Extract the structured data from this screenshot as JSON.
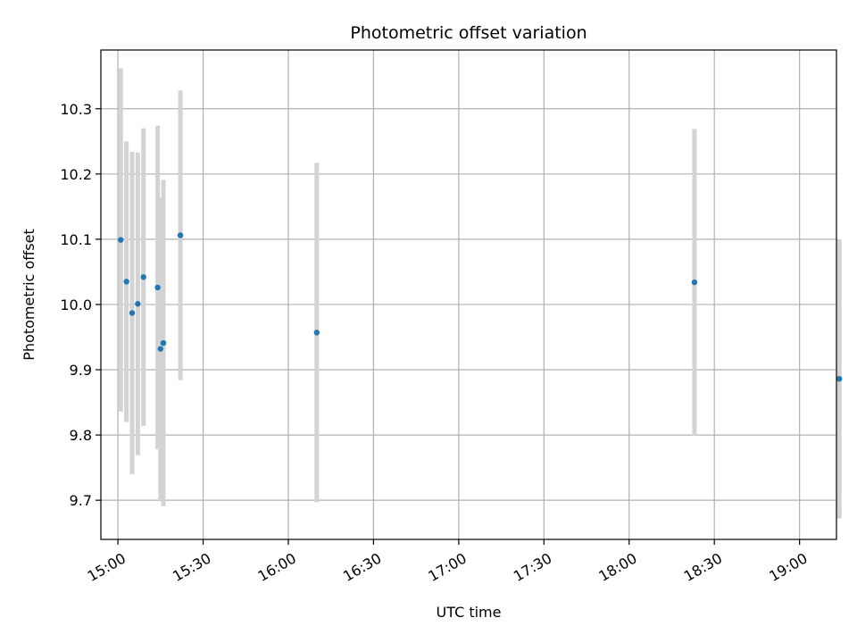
{
  "chart_data": {
    "type": "scatter",
    "title": "Photometric offset variation",
    "xlabel": "UTC time",
    "ylabel": "Photometric offset",
    "x_unit": "time (HH:MM, UTC)",
    "xlim": [
      "14:54",
      "19:13"
    ],
    "ylim": [
      9.64,
      10.39
    ],
    "x_ticks": [
      "15:00",
      "15:30",
      "16:00",
      "16:30",
      "17:00",
      "17:30",
      "18:00",
      "18:30",
      "19:00"
    ],
    "y_ticks": [
      9.7,
      9.8,
      9.9,
      10.0,
      10.1,
      10.2,
      10.3
    ],
    "y_tick_labels": [
      "9.7",
      "9.8",
      "9.9",
      "10.0",
      "10.1",
      "10.2",
      "10.3"
    ],
    "grid": true,
    "point_color": "#1f77b4",
    "errorbar_color": "#d3d3d3",
    "points": [
      {
        "x": "15:01",
        "y": 10.099,
        "err": 0.263
      },
      {
        "x": "15:03",
        "y": 10.035,
        "err": 0.215
      },
      {
        "x": "15:05",
        "y": 9.987,
        "err": 0.247
      },
      {
        "x": "15:07",
        "y": 10.001,
        "err": 0.232
      },
      {
        "x": "15:09",
        "y": 10.042,
        "err": 0.228
      },
      {
        "x": "15:14",
        "y": 10.026,
        "err": 0.248
      },
      {
        "x": "15:15",
        "y": 9.932,
        "err": 0.232
      },
      {
        "x": "15:16",
        "y": 9.941,
        "err": 0.25
      },
      {
        "x": "15:22",
        "y": 10.106,
        "err": 0.222
      },
      {
        "x": "16:10",
        "y": 9.957,
        "err": 0.26
      },
      {
        "x": "18:23",
        "y": 10.034,
        "err": 0.235
      },
      {
        "x": "19:14",
        "y": 9.886,
        "err": 0.214
      }
    ]
  }
}
